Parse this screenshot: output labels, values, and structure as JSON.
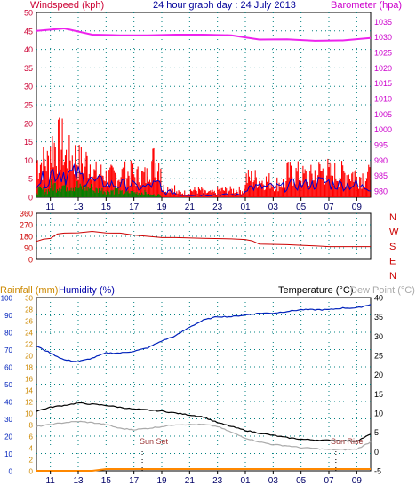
{
  "header": {
    "left_label": "Windspeed (kph)",
    "center_title": "24 hour graph day : 24 July 2013",
    "right_label": "Barometer (hpa)"
  },
  "panel2": {
    "direction_letters": [
      "N",
      "W",
      "S",
      "E",
      "N"
    ]
  },
  "panel3": {
    "rainfall_label": "Rainfall (mm)",
    "humidity_label": "Humidity (%)",
    "temperature_label": "Temperature (°C)",
    "dewpoint_label": "Dew Point (°C)",
    "sunset_label": "Sun Set",
    "sunrise_label": "Sun Rise"
  },
  "colors": {
    "wind_axis": "#cc0033",
    "baro_axis": "#cc00cc",
    "title": "#000099",
    "gust": "#ff0000",
    "avg": "#0000cc",
    "min": "#008000",
    "barometer": "#ee22ee",
    "direction": "#cc0000",
    "humidity": "#0022bb",
    "temperature": "#000000",
    "dewpoint": "#aaaaaa",
    "rainfall": "#ff8800",
    "grid": "#008080"
  },
  "chart_data": [
    {
      "type": "line",
      "name": "wind-barometer",
      "x_ticks": [
        "11",
        "13",
        "15",
        "17",
        "19",
        "21",
        "23",
        "01",
        "03",
        "05",
        "07",
        "09"
      ],
      "y_left_ticks": [
        "0",
        "5",
        "10",
        "15",
        "20",
        "25",
        "30",
        "35",
        "40",
        "45",
        "50"
      ],
      "y_left_range": [
        0,
        50
      ],
      "y_right_ticks": [
        "980",
        "985",
        "990",
        "995",
        "1000",
        "1005",
        "1010",
        "1015",
        "1020",
        "1025",
        "1030",
        "1035"
      ],
      "y_right_range": [
        978,
        1038
      ],
      "barometer": {
        "hours": [
          0,
          2,
          4,
          6,
          8,
          10,
          12,
          14,
          16,
          18,
          20,
          22,
          24
        ],
        "values": [
          1032,
          1032.8,
          1030.8,
          1030.6,
          1030.6,
          1030.8,
          1030.8,
          1030.6,
          1029.2,
          1029.3,
          1028.8,
          1028.9,
          1029.7
        ]
      },
      "gust_max_by_hour": [
        15,
        22,
        17,
        15,
        10,
        9,
        10,
        9,
        15,
        4,
        2,
        3,
        2,
        3,
        3,
        8,
        7,
        6,
        10,
        9,
        11,
        10,
        10,
        9
      ],
      "avg_max_by_hour": [
        7,
        10,
        9,
        8,
        6,
        5,
        5,
        4,
        5,
        2,
        1,
        1,
        1,
        1,
        1,
        4,
        4,
        4,
        5,
        5,
        6,
        5,
        5,
        4
      ],
      "min_max_by_hour": [
        3,
        5,
        5,
        4,
        3,
        3,
        2,
        2,
        1,
        0,
        0,
        0,
        0,
        0,
        0,
        0,
        0,
        0,
        0,
        0,
        0,
        0,
        0,
        0
      ]
    },
    {
      "type": "line",
      "name": "wind-direction",
      "x_ticks": [
        "11",
        "13",
        "15",
        "17",
        "19",
        "21",
        "23",
        "01",
        "03",
        "05",
        "07",
        "09"
      ],
      "y_ticks": [
        "0",
        "90",
        "180",
        "270",
        "360"
      ],
      "y_range": [
        0,
        360
      ],
      "direction": {
        "hours": [
          0,
          0.5,
          1,
          1.5,
          2,
          3,
          4,
          5,
          6,
          7,
          8,
          9,
          10,
          12,
          14,
          15,
          15.5,
          16,
          18,
          19,
          20,
          21,
          22,
          24
        ],
        "values": [
          150,
          160,
          170,
          195,
          220,
          215,
          205,
          210,
          205,
          190,
          180,
          170,
          170,
          165,
          160,
          155,
          145,
          120,
          115,
          110,
          105,
          100,
          100,
          100
        ]
      }
    },
    {
      "type": "line",
      "name": "humidity-temperature",
      "x_ticks": [
        "11",
        "13",
        "15",
        "17",
        "19",
        "21",
        "23",
        "01",
        "03",
        "05",
        "07",
        "09"
      ],
      "humidity_ticks": [
        "0",
        "10",
        "20",
        "30",
        "40",
        "50",
        "60",
        "70",
        "80",
        "90",
        "100"
      ],
      "humidity_range": [
        0,
        100
      ],
      "rainfall_ticks": [
        "0",
        "2",
        "4",
        "6",
        "8",
        "10",
        "12",
        "14",
        "16",
        "18",
        "20",
        "22",
        "24",
        "26",
        "28",
        "30"
      ],
      "rainfall_range": [
        0,
        30
      ],
      "temperature_ticks": [
        "-5",
        "0",
        "5",
        "10",
        "15",
        "20",
        "25",
        "30",
        "35",
        "40"
      ],
      "temperature_range": [
        -5,
        40
      ],
      "humidity": {
        "hours": [
          0,
          1,
          2,
          3,
          4,
          5,
          6,
          7,
          8,
          9,
          10,
          11,
          12,
          13,
          14,
          15,
          16,
          17,
          18,
          19,
          20,
          21,
          22,
          23,
          24
        ],
        "values": [
          72,
          68,
          64,
          63,
          65,
          68,
          68,
          69,
          71,
          75,
          78,
          83,
          87,
          89,
          89,
          90,
          91,
          91,
          92,
          93,
          93,
          93,
          94,
          94,
          96
        ]
      },
      "temperature": {
        "hours": [
          0,
          1,
          2,
          3,
          4,
          5,
          6,
          7,
          8,
          9,
          10,
          11,
          12,
          13,
          14,
          15,
          16,
          17,
          18,
          19,
          20,
          21,
          22,
          23,
          24
        ],
        "values": [
          10.5,
          11.5,
          12,
          12.6,
          12.3,
          12,
          11.5,
          11,
          10.8,
          10.5,
          10,
          9.5,
          9,
          7.5,
          6.5,
          5.5,
          4.8,
          4.2,
          3.6,
          3.2,
          3.0,
          2.9,
          2.8,
          2.7,
          4.5
        ]
      },
      "dewpoint": {
        "hours": [
          0,
          1,
          2,
          3,
          4,
          5,
          6,
          7,
          8,
          9,
          10,
          11,
          12,
          13,
          14,
          15,
          16,
          17,
          18,
          19,
          20,
          21,
          22,
          23,
          24
        ],
        "values": [
          6.5,
          7,
          7.5,
          7.8,
          7.5,
          7,
          6,
          5.7,
          6,
          6.5,
          7,
          7,
          7,
          6.5,
          5,
          3.5,
          2.5,
          1.8,
          1.5,
          1,
          0.8,
          0.5,
          0.5,
          0.6,
          2.5
        ]
      },
      "rainfall": {
        "hours": [
          0,
          4,
          5,
          24
        ],
        "values": [
          0,
          0,
          0.3,
          0.3
        ]
      }
    }
  ]
}
